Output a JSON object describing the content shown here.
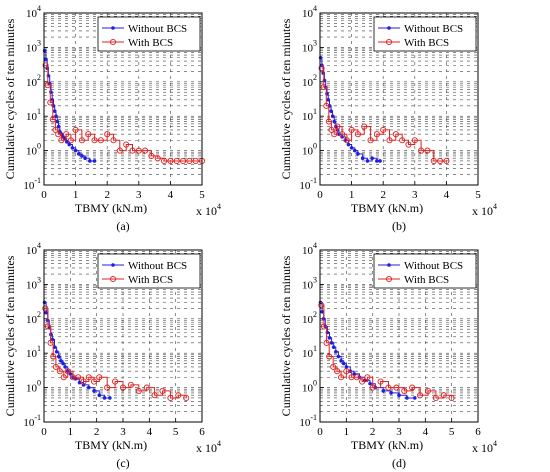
{
  "chart_data": [
    {
      "panel": "(a)",
      "type": "line",
      "xlabel": "TBMY (kN.m)",
      "x_multiplier": "x 10",
      "x_multiplier_exp": "4",
      "ylabel": "Cumulative cycles of ten minutes",
      "xlim": [
        0,
        5
      ],
      "ylim_log10": [
        -1,
        4
      ],
      "x_ticks": [
        "0",
        "1",
        "2",
        "3",
        "4",
        "5"
      ],
      "y_ticks": [
        {
          "base": "10",
          "exp": "-1"
        },
        {
          "base": "10",
          "exp": "0"
        },
        {
          "base": "10",
          "exp": "1"
        },
        {
          "base": "10",
          "exp": "2"
        },
        {
          "base": "10",
          "exp": "3"
        },
        {
          "base": "10",
          "exp": "4"
        }
      ],
      "legend_position": "top-right",
      "series": [
        {
          "name": "Without BCS",
          "color": "#1f1fe0",
          "marker": "dot",
          "x": [
            0.02,
            0.06,
            0.1,
            0.14,
            0.18,
            0.22,
            0.26,
            0.3,
            0.34,
            0.38,
            0.42,
            0.46,
            0.5,
            0.55,
            0.6,
            0.65,
            0.72,
            0.8,
            0.9,
            1.0,
            1.1,
            1.2,
            1.3,
            1.45,
            1.6
          ],
          "y": [
            800,
            450,
            250,
            150,
            90,
            50,
            30,
            20,
            14,
            10,
            7,
            5,
            3.5,
            3,
            2.5,
            2.2,
            1.8,
            1.5,
            1.2,
            1,
            0.8,
            0.7,
            0.6,
            0.5,
            0.5
          ]
        },
        {
          "name": "With BCS",
          "color": "#e02020",
          "marker": "circle",
          "x": [
            0.05,
            0.12,
            0.2,
            0.28,
            0.36,
            0.45,
            0.55,
            0.7,
            0.85,
            1.0,
            1.2,
            1.4,
            1.6,
            1.8,
            2.0,
            2.2,
            2.4,
            2.6,
            2.8,
            3.0,
            3.2,
            3.4,
            3.6,
            3.8,
            4.0,
            4.2,
            4.4,
            4.6,
            4.8,
            5.0
          ],
          "y": [
            300,
            80,
            25,
            8,
            4,
            3,
            2,
            3,
            2,
            4,
            2,
            3,
            2,
            2,
            3,
            2,
            1,
            1.5,
            1,
            1,
            1,
            0.7,
            0.6,
            0.5,
            0.5,
            0.5,
            0.5,
            0.5,
            0.5,
            0.5
          ]
        }
      ]
    },
    {
      "panel": "(b)",
      "type": "line",
      "xlabel": "TBMY (kN.m)",
      "x_multiplier": "x 10",
      "x_multiplier_exp": "4",
      "ylabel": "Cumulative cycles of ten minutes",
      "xlim": [
        0,
        5
      ],
      "ylim_log10": [
        -1,
        4
      ],
      "x_ticks": [
        "0",
        "1",
        "2",
        "3",
        "4",
        "5"
      ],
      "y_ticks": [
        {
          "base": "10",
          "exp": "-1"
        },
        {
          "base": "10",
          "exp": "0"
        },
        {
          "base": "10",
          "exp": "1"
        },
        {
          "base": "10",
          "exp": "2"
        },
        {
          "base": "10",
          "exp": "3"
        },
        {
          "base": "10",
          "exp": "4"
        }
      ],
      "legend_position": "top-right",
      "series": [
        {
          "name": "Without BCS",
          "color": "#1f1fe0",
          "marker": "dot",
          "x": [
            0.02,
            0.06,
            0.1,
            0.14,
            0.18,
            0.22,
            0.26,
            0.3,
            0.35,
            0.4,
            0.45,
            0.5,
            0.55,
            0.6,
            0.7,
            0.8,
            0.9,
            1.0,
            1.1,
            1.2,
            1.35,
            1.5,
            1.65,
            1.8,
            1.9
          ],
          "y": [
            500,
            300,
            180,
            110,
            70,
            45,
            30,
            20,
            14,
            10,
            7,
            5,
            4,
            3,
            2.5,
            2,
            1.5,
            1.2,
            1,
            0.8,
            0.6,
            0.5,
            0.6,
            0.5,
            0.5
          ]
        },
        {
          "name": "With BCS",
          "color": "#e02020",
          "marker": "circle",
          "x": [
            0.05,
            0.12,
            0.2,
            0.28,
            0.36,
            0.45,
            0.55,
            0.7,
            0.85,
            1.0,
            1.2,
            1.4,
            1.6,
            1.8,
            2.0,
            2.2,
            2.4,
            2.6,
            2.8,
            3.0,
            3.2,
            3.4,
            3.6,
            3.8,
            4.0
          ],
          "y": [
            250,
            70,
            20,
            7,
            4,
            3,
            5,
            3,
            2,
            4,
            3,
            5,
            2,
            3,
            4,
            2,
            3,
            2,
            1.5,
            2,
            1,
            1,
            0.5,
            0.5,
            0.5
          ]
        }
      ]
    },
    {
      "panel": "(c)",
      "type": "line",
      "xlabel": "TBMY (kN.m)",
      "x_multiplier": "x 10",
      "x_multiplier_exp": "4",
      "ylabel": "Cumulative cycles of ten minutes",
      "xlim": [
        0,
        6
      ],
      "ylim_log10": [
        -1,
        4
      ],
      "x_ticks": [
        "0",
        "1",
        "2",
        "3",
        "4",
        "5",
        "6"
      ],
      "y_ticks": [
        {
          "base": "10",
          "exp": "-1"
        },
        {
          "base": "10",
          "exp": "0"
        },
        {
          "base": "10",
          "exp": "1"
        },
        {
          "base": "10",
          "exp": "2"
        },
        {
          "base": "10",
          "exp": "3"
        },
        {
          "base": "10",
          "exp": "4"
        }
      ],
      "legend_position": "top-right",
      "series": [
        {
          "name": "Without BCS",
          "color": "#1f1fe0",
          "marker": "dot",
          "x": [
            0.02,
            0.08,
            0.14,
            0.2,
            0.26,
            0.32,
            0.4,
            0.48,
            0.56,
            0.64,
            0.72,
            0.8,
            0.9,
            1.0,
            1.1,
            1.2,
            1.35,
            1.5,
            1.7,
            1.9,
            2.1,
            2.3,
            2.5
          ],
          "y": [
            300,
            150,
            90,
            55,
            35,
            25,
            15,
            11,
            8,
            6,
            5,
            4,
            3,
            2.5,
            2,
            1.8,
            1.4,
            1.2,
            1,
            0.8,
            0.6,
            0.5,
            0.5
          ]
        },
        {
          "name": "With BCS",
          "color": "#e02020",
          "marker": "circle",
          "x": [
            0.05,
            0.15,
            0.25,
            0.35,
            0.45,
            0.6,
            0.75,
            0.9,
            1.1,
            1.3,
            1.5,
            1.7,
            1.9,
            2.1,
            2.4,
            2.7,
            3.0,
            3.3,
            3.6,
            3.9,
            4.2,
            4.5,
            4.8,
            5.1,
            5.4
          ],
          "y": [
            200,
            60,
            20,
            8,
            4,
            3,
            2,
            3,
            2,
            2,
            1.5,
            2,
            1.5,
            2,
            1,
            1.5,
            1,
            1.2,
            0.8,
            1,
            0.6,
            0.8,
            0.5,
            0.6,
            0.5
          ]
        }
      ]
    },
    {
      "panel": "(d)",
      "type": "line",
      "xlabel": "TBMY (kN.m)",
      "x_multiplier": "x 10",
      "x_multiplier_exp": "4",
      "ylabel": "Cumulative cycles of ten minutes",
      "xlim": [
        0,
        6
      ],
      "ylim_log10": [
        -1,
        4
      ],
      "x_ticks": [
        "0",
        "1",
        "2",
        "3",
        "4",
        "5",
        "6"
      ],
      "y_ticks": [
        {
          "base": "10",
          "exp": "-1"
        },
        {
          "base": "10",
          "exp": "0"
        },
        {
          "base": "10",
          "exp": "1"
        },
        {
          "base": "10",
          "exp": "2"
        },
        {
          "base": "10",
          "exp": "3"
        },
        {
          "base": "10",
          "exp": "4"
        }
      ],
      "legend_position": "top-right",
      "series": [
        {
          "name": "Without BCS",
          "color": "#1f1fe0",
          "marker": "dot",
          "x": [
            0.02,
            0.08,
            0.14,
            0.2,
            0.28,
            0.36,
            0.44,
            0.52,
            0.6,
            0.7,
            0.8,
            0.9,
            1.0,
            1.15,
            1.3,
            1.5,
            1.7,
            1.9,
            2.1,
            2.4,
            2.7,
            3.0,
            3.3,
            3.6
          ],
          "y": [
            300,
            160,
            100,
            60,
            40,
            28,
            20,
            15,
            11,
            8,
            6,
            5,
            4,
            3,
            2.5,
            2,
            1.6,
            1.3,
            1,
            0.8,
            0.7,
            0.6,
            0.5,
            0.5
          ]
        },
        {
          "name": "With BCS",
          "color": "#e02020",
          "marker": "circle",
          "x": [
            0.05,
            0.15,
            0.25,
            0.35,
            0.5,
            0.65,
            0.8,
            1.0,
            1.2,
            1.4,
            1.6,
            1.8,
            2.0,
            2.3,
            2.6,
            2.9,
            3.2,
            3.5,
            3.8,
            4.1,
            4.4,
            4.7,
            5.0
          ],
          "y": [
            250,
            60,
            20,
            8,
            4,
            3,
            2,
            3,
            2,
            2,
            1.5,
            2,
            1,
            1.5,
            1,
            1,
            0.8,
            1,
            0.6,
            0.8,
            0.5,
            0.6,
            0.5
          ]
        }
      ]
    }
  ]
}
